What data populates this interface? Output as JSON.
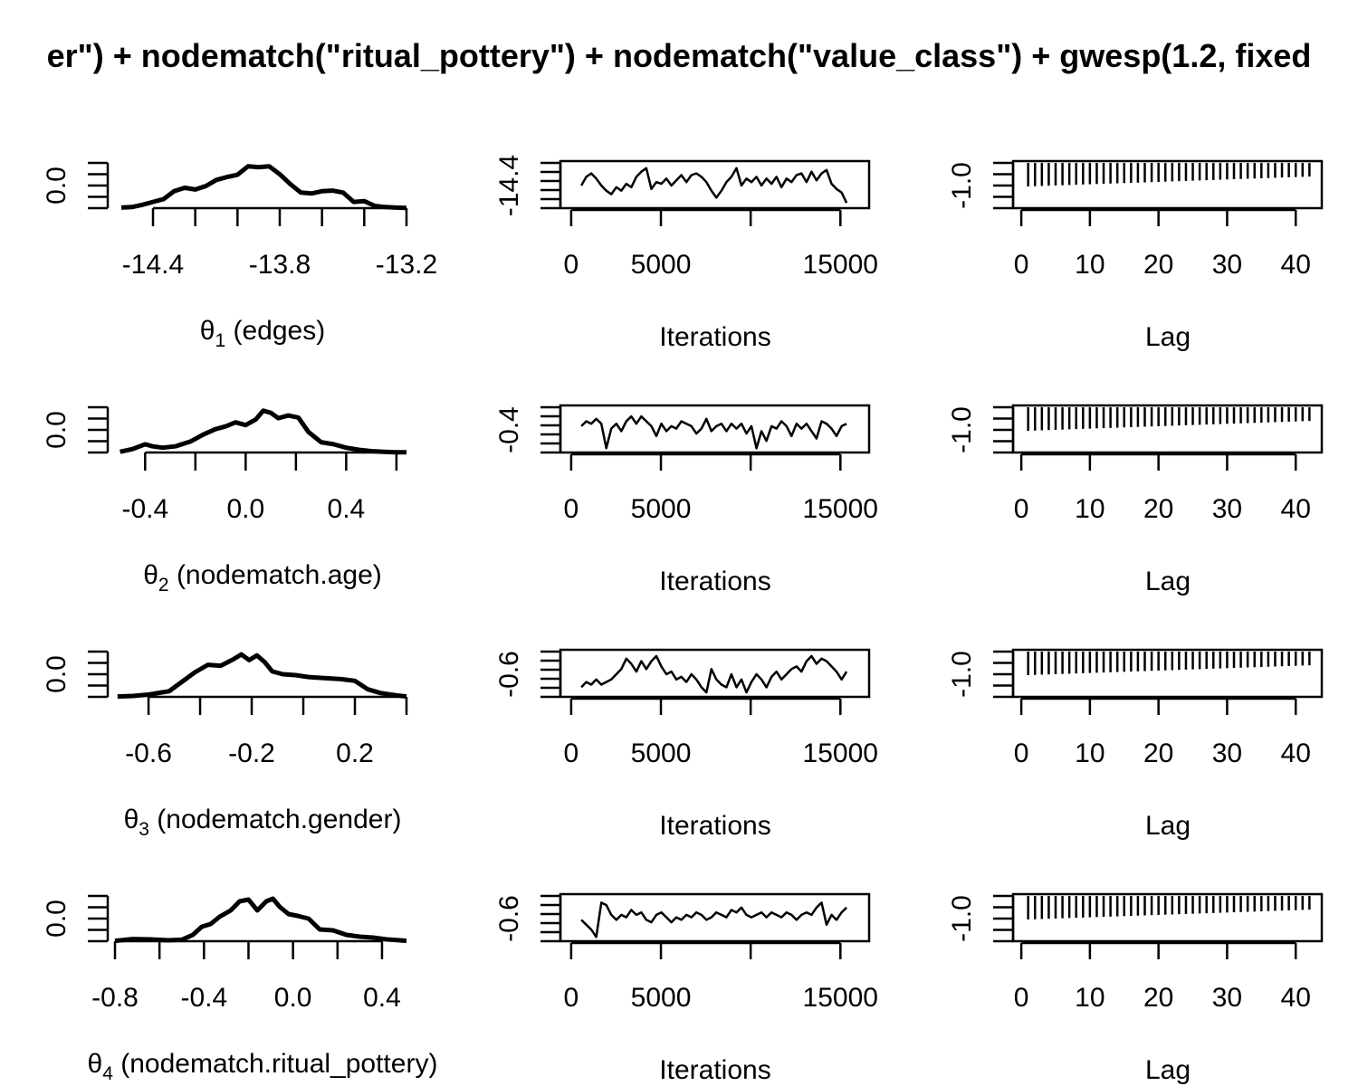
{
  "title": "er\") + nodematch(\"ritual_pottery\") + nodematch(\"value_class\") + gwesp(1.2, fixed",
  "colors": {
    "ink": "#000000",
    "background": "#ffffff"
  },
  "chart_data": [
    {
      "type": "line",
      "kind": "density",
      "parameter": {
        "symbol": "θ",
        "index": "1",
        "label": " (edges)"
      },
      "xticks": [
        "-14.4",
        "-13.8",
        "-13.2"
      ],
      "x_minor_ticks": [
        -14.4,
        -14.2,
        -14.0,
        -13.8,
        -13.6,
        -13.4,
        -13.2
      ],
      "xlim": [
        -14.58,
        -13.2
      ],
      "yticks": [
        "0.0"
      ],
      "ylim": [
        0,
        1.6
      ],
      "x": [
        -14.55,
        -14.5,
        -14.45,
        -14.4,
        -14.35,
        -14.3,
        -14.25,
        -14.2,
        -14.15,
        -14.1,
        -14.05,
        -14.0,
        -13.95,
        -13.9,
        -13.85,
        -13.8,
        -13.75,
        -13.7,
        -13.65,
        -13.6,
        -13.55,
        -13.5,
        -13.45,
        -13.4,
        -13.35,
        -13.3,
        -13.25,
        -13.2
      ],
      "y": [
        0.02,
        0.04,
        0.12,
        0.22,
        0.32,
        0.6,
        0.72,
        0.66,
        0.78,
        1.0,
        1.1,
        1.18,
        1.48,
        1.45,
        1.48,
        1.2,
        0.85,
        0.55,
        0.52,
        0.6,
        0.62,
        0.55,
        0.22,
        0.25,
        0.08,
        0.04,
        0.02,
        0.01
      ]
    },
    {
      "type": "line",
      "kind": "trace",
      "ylabel_tick": "-14.4",
      "xlabel": "Iterations",
      "xticks": [
        0,
        5000,
        15000
      ],
      "x_minor_ticks": [
        0,
        5000,
        10000,
        15000
      ],
      "xlim": [
        -600,
        16600
      ],
      "ylim": [
        -14.4,
        -13.2
      ],
      "x": [
        0,
        300,
        600,
        900,
        1200,
        1500,
        1800,
        2100,
        2400,
        2700,
        3000,
        3300,
        3600,
        3900,
        4200,
        4500,
        4800,
        5100,
        5400,
        5700,
        6000,
        6300,
        6600,
        6900,
        7200,
        7500,
        7800,
        8100,
        8400,
        8700,
        9000,
        9300,
        9600,
        9900,
        10200,
        10500,
        10800,
        11100,
        11400,
        11700,
        12000,
        12300,
        12600,
        12900,
        13200,
        13500,
        13800,
        14100,
        14400,
        14700,
        15000,
        15300,
        15600,
        15900
      ],
      "y": [
        -13.8,
        -13.55,
        -13.45,
        -13.6,
        -13.8,
        -13.95,
        -14.05,
        -13.85,
        -13.95,
        -13.75,
        -13.85,
        -13.55,
        -13.4,
        -13.3,
        -13.9,
        -13.7,
        -13.75,
        -13.6,
        -13.8,
        -13.65,
        -13.5,
        -13.7,
        -13.5,
        -13.45,
        -13.55,
        -13.7,
        -13.95,
        -14.15,
        -13.95,
        -13.7,
        -13.55,
        -13.3,
        -13.8,
        -13.6,
        -13.7,
        -13.55,
        -13.8,
        -13.6,
        -13.75,
        -13.55,
        -13.85,
        -13.6,
        -13.7,
        -13.5,
        -13.45,
        -13.7,
        -13.4,
        -13.65,
        -13.45,
        -13.35,
        -13.75,
        -13.9,
        -14.0,
        -14.3
      ]
    },
    {
      "type": "bar",
      "kind": "autocorrelation",
      "ylabel_tick": "-1.0",
      "xlabel": "Lag",
      "xticks": [
        0,
        10,
        20,
        30,
        40
      ],
      "xlim": [
        -1.2,
        43.8
      ],
      "ylim": [
        -1.0,
        1.0
      ],
      "lags": [
        1,
        2,
        3,
        4,
        5,
        6,
        7,
        8,
        9,
        10,
        11,
        12,
        13,
        14,
        15,
        16,
        17,
        18,
        19,
        20,
        21,
        22,
        23,
        24,
        25,
        26,
        27,
        28,
        29,
        30,
        31,
        32,
        33,
        34,
        35,
        36,
        37,
        38,
        39,
        40,
        41,
        42
      ],
      "values": [
        0.98,
        0.97,
        0.96,
        0.95,
        0.94,
        0.93,
        0.92,
        0.91,
        0.9,
        0.89,
        0.88,
        0.87,
        0.86,
        0.85,
        0.84,
        0.83,
        0.82,
        0.81,
        0.8,
        0.79,
        0.78,
        0.77,
        0.76,
        0.75,
        0.74,
        0.73,
        0.72,
        0.71,
        0.7,
        0.69,
        0.68,
        0.67,
        0.66,
        0.65,
        0.64,
        0.63,
        0.62,
        0.61,
        0.6,
        0.59,
        0.58,
        0.57
      ]
    },
    {
      "type": "line",
      "kind": "density",
      "parameter": {
        "symbol": "θ",
        "index": "2",
        "label": " (nodematch.age)"
      },
      "xticks": [
        "-0.4",
        "0.0",
        "0.4"
      ],
      "x_minor_ticks": [
        -0.4,
        -0.2,
        0.0,
        0.2,
        0.4,
        0.6
      ],
      "xlim": [
        -0.52,
        0.64
      ],
      "yticks": [
        "0.0"
      ],
      "ylim": [
        0,
        3.3
      ],
      "x": [
        -0.5,
        -0.45,
        -0.4,
        -0.37,
        -0.33,
        -0.28,
        -0.22,
        -0.17,
        -0.12,
        -0.08,
        -0.04,
        0.0,
        0.04,
        0.07,
        0.1,
        0.13,
        0.17,
        0.21,
        0.25,
        0.3,
        0.35,
        0.4,
        0.45,
        0.5,
        0.55,
        0.6,
        0.64
      ],
      "y": [
        0.05,
        0.25,
        0.6,
        0.45,
        0.35,
        0.45,
        0.8,
        1.3,
        1.7,
        1.9,
        2.2,
        2.0,
        2.4,
        3.05,
        2.9,
        2.5,
        2.7,
        2.55,
        1.5,
        0.75,
        0.6,
        0.35,
        0.2,
        0.1,
        0.05,
        0.02,
        0.01
      ]
    },
    {
      "type": "line",
      "kind": "trace",
      "ylabel_tick": "-0.4",
      "xlabel": "Iterations",
      "xticks": [
        0,
        5000,
        15000
      ],
      "x_minor_ticks": [
        0,
        5000,
        10000,
        15000
      ],
      "xlim": [
        -600,
        16600
      ],
      "ylim": [
        -0.4,
        0.45
      ],
      "x": [
        0,
        300,
        600,
        900,
        1200,
        1500,
        1800,
        2100,
        2400,
        2700,
        3000,
        3300,
        3600,
        3900,
        4200,
        4500,
        4800,
        5100,
        5400,
        5700,
        6000,
        6300,
        6600,
        6900,
        7200,
        7500,
        7800,
        8100,
        8400,
        8700,
        9000,
        9300,
        9600,
        9900,
        10200,
        10500,
        10800,
        11100,
        11400,
        11700,
        12000,
        12300,
        12600,
        12900,
        13200,
        13500,
        13800,
        14100,
        14400,
        14700,
        15000,
        15300,
        15600,
        15900
      ],
      "y": [
        0.1,
        0.2,
        0.15,
        0.25,
        0.15,
        -0.35,
        0.05,
        0.15,
        0.0,
        0.2,
        0.3,
        0.15,
        0.3,
        0.2,
        0.1,
        -0.1,
        0.15,
        0.0,
        0.1,
        0.05,
        0.2,
        0.15,
        0.1,
        -0.05,
        0.05,
        0.25,
        0.0,
        0.1,
        0.15,
        0.0,
        0.15,
        0.05,
        0.15,
        -0.05,
        0.1,
        -0.35,
        0.0,
        -0.2,
        0.1,
        0.05,
        0.2,
        0.1,
        -0.1,
        0.15,
        0.05,
        0.15,
        0.0,
        -0.15,
        0.2,
        0.15,
        0.05,
        -0.1,
        0.1,
        0.15
      ]
    },
    {
      "type": "bar",
      "kind": "autocorrelation",
      "ylabel_tick": "-1.0",
      "xlabel": "Lag",
      "xticks": [
        0,
        10,
        20,
        30,
        40
      ],
      "xlim": [
        -1.2,
        43.8
      ],
      "ylim": [
        -1.0,
        1.0
      ],
      "lags": [
        1,
        2,
        3,
        4,
        5,
        6,
        7,
        8,
        9,
        10,
        11,
        12,
        13,
        14,
        15,
        16,
        17,
        18,
        19,
        20,
        21,
        22,
        23,
        24,
        25,
        26,
        27,
        28,
        29,
        30,
        31,
        32,
        33,
        34,
        35,
        36,
        37,
        38,
        39,
        40,
        41,
        42
      ],
      "values": [
        0.98,
        0.97,
        0.96,
        0.95,
        0.94,
        0.93,
        0.92,
        0.91,
        0.9,
        0.89,
        0.88,
        0.87,
        0.86,
        0.85,
        0.84,
        0.83,
        0.82,
        0.81,
        0.8,
        0.79,
        0.78,
        0.77,
        0.76,
        0.75,
        0.74,
        0.73,
        0.72,
        0.71,
        0.7,
        0.69,
        0.68,
        0.67,
        0.66,
        0.65,
        0.64,
        0.63,
        0.62,
        0.61,
        0.6,
        0.59,
        0.58,
        0.57
      ]
    },
    {
      "type": "line",
      "kind": "density",
      "parameter": {
        "symbol": "θ",
        "index": "3",
        "label": " (nodematch.gender)"
      },
      "xticks": [
        "-0.6",
        "-0.2",
        "0.2"
      ],
      "x_minor_ticks": [
        -0.6,
        -0.4,
        -0.2,
        0.0,
        0.2,
        0.4
      ],
      "xlim": [
        -0.73,
        0.4
      ],
      "yticks": [
        "0.0"
      ],
      "ylim": [
        0,
        2.4
      ],
      "x": [
        -0.72,
        -0.66,
        -0.6,
        -0.52,
        -0.47,
        -0.42,
        -0.37,
        -0.32,
        -0.27,
        -0.24,
        -0.21,
        -0.18,
        -0.15,
        -0.12,
        -0.08,
        -0.03,
        0.02,
        0.08,
        0.14,
        0.2,
        0.25,
        0.3,
        0.36,
        0.4
      ],
      "y": [
        0.02,
        0.05,
        0.12,
        0.3,
        0.8,
        1.3,
        1.7,
        1.65,
        2.0,
        2.25,
        1.95,
        2.2,
        1.85,
        1.35,
        1.2,
        1.15,
        1.05,
        1.0,
        0.95,
        0.85,
        0.4,
        0.2,
        0.08,
        0.02
      ]
    },
    {
      "type": "line",
      "kind": "trace",
      "ylabel_tick": "-0.6",
      "xlabel": "Iterations",
      "xticks": [
        0,
        5000,
        15000
      ],
      "x_minor_ticks": [
        0,
        5000,
        10000,
        15000
      ],
      "xlim": [
        -600,
        16600
      ],
      "ylim": [
        -0.6,
        0.2
      ],
      "x": [
        0,
        300,
        600,
        900,
        1200,
        1500,
        1800,
        2100,
        2400,
        2700,
        3000,
        3300,
        3600,
        3900,
        4200,
        4500,
        4800,
        5100,
        5400,
        5700,
        6000,
        6300,
        6600,
        6900,
        7200,
        7500,
        7800,
        8100,
        8400,
        8700,
        9000,
        9300,
        9600,
        9900,
        10200,
        10500,
        10800,
        11100,
        11400,
        11700,
        12000,
        12300,
        12600,
        12900,
        13200,
        13500,
        13800,
        14100,
        14400,
        14700,
        15000,
        15300,
        15600,
        15900
      ],
      "y": [
        -0.45,
        -0.35,
        -0.4,
        -0.3,
        -0.4,
        -0.35,
        -0.3,
        -0.2,
        -0.1,
        0.1,
        0.0,
        -0.15,
        0.05,
        -0.1,
        0.05,
        0.15,
        -0.05,
        -0.2,
        -0.15,
        -0.3,
        -0.25,
        -0.35,
        -0.2,
        -0.3,
        -0.45,
        -0.55,
        -0.1,
        -0.3,
        -0.4,
        -0.45,
        -0.2,
        -0.45,
        -0.3,
        -0.55,
        -0.35,
        -0.2,
        -0.3,
        -0.45,
        -0.25,
        -0.15,
        -0.3,
        -0.2,
        -0.1,
        -0.05,
        -0.15,
        0.05,
        0.15,
        0.0,
        0.1,
        0.05,
        -0.05,
        -0.15,
        -0.3,
        -0.15
      ]
    },
    {
      "type": "bar",
      "kind": "autocorrelation",
      "ylabel_tick": "-1.0",
      "xlabel": "Lag",
      "xticks": [
        0,
        10,
        20,
        30,
        40
      ],
      "xlim": [
        -1.2,
        43.8
      ],
      "ylim": [
        -1.0,
        1.0
      ],
      "lags": [
        1,
        2,
        3,
        4,
        5,
        6,
        7,
        8,
        9,
        10,
        11,
        12,
        13,
        14,
        15,
        16,
        17,
        18,
        19,
        20,
        21,
        22,
        23,
        24,
        25,
        26,
        27,
        28,
        29,
        30,
        31,
        32,
        33,
        34,
        35,
        36,
        37,
        38,
        39,
        40,
        41,
        42
      ],
      "values": [
        0.98,
        0.97,
        0.96,
        0.95,
        0.94,
        0.93,
        0.92,
        0.91,
        0.9,
        0.89,
        0.88,
        0.87,
        0.86,
        0.85,
        0.84,
        0.83,
        0.82,
        0.81,
        0.8,
        0.79,
        0.78,
        0.77,
        0.76,
        0.75,
        0.74,
        0.73,
        0.72,
        0.71,
        0.7,
        0.69,
        0.68,
        0.67,
        0.66,
        0.65,
        0.64,
        0.63,
        0.62,
        0.61,
        0.6,
        0.59,
        0.58,
        0.57
      ]
    },
    {
      "type": "line",
      "kind": "density",
      "parameter": {
        "symbol": "θ",
        "index": "4",
        "label": " (nodematch.ritual_pottery)"
      },
      "xticks": [
        "-0.8",
        "-0.4",
        "0.0",
        "0.4"
      ],
      "x_minor_ticks": [
        -0.8,
        -0.6,
        -0.4,
        -0.2,
        0.0,
        0.2,
        0.4
      ],
      "xlim": [
        -0.8,
        0.51
      ],
      "yticks": [
        "0.0"
      ],
      "ylim": [
        0,
        2.5
      ],
      "x": [
        -0.8,
        -0.72,
        -0.64,
        -0.56,
        -0.5,
        -0.45,
        -0.41,
        -0.37,
        -0.33,
        -0.28,
        -0.24,
        -0.2,
        -0.16,
        -0.12,
        -0.09,
        -0.06,
        -0.02,
        0.02,
        0.07,
        0.12,
        0.18,
        0.24,
        0.3,
        0.36,
        0.42,
        0.48,
        0.51
      ],
      "y": [
        0.02,
        0.12,
        0.1,
        0.05,
        0.08,
        0.35,
        0.8,
        0.95,
        1.35,
        1.7,
        2.2,
        2.3,
        1.7,
        2.2,
        2.35,
        1.9,
        1.5,
        1.4,
        1.25,
        0.65,
        0.6,
        0.35,
        0.25,
        0.2,
        0.1,
        0.05,
        0.02
      ]
    },
    {
      "type": "line",
      "kind": "trace",
      "ylabel_tick": "-0.6",
      "xlabel": "Iterations",
      "xticks": [
        0,
        5000,
        15000
      ],
      "x_minor_ticks": [
        0,
        5000,
        10000,
        15000
      ],
      "xlim": [
        -600,
        16600
      ],
      "ylim": [
        -0.6,
        0.25
      ],
      "x": [
        0,
        300,
        600,
        900,
        1200,
        1500,
        1800,
        2100,
        2400,
        2700,
        3000,
        3300,
        3600,
        3900,
        4200,
        4500,
        4800,
        5100,
        5400,
        5700,
        6000,
        6300,
        6600,
        6900,
        7200,
        7500,
        7800,
        8100,
        8400,
        8700,
        9000,
        9300,
        9600,
        9900,
        10200,
        10500,
        10800,
        11100,
        11400,
        11700,
        12000,
        12300,
        12600,
        12900,
        13200,
        13500,
        13800,
        14100,
        14400,
        14700,
        15000,
        15300,
        15600,
        15900
      ],
      "y": [
        -0.2,
        -0.3,
        -0.4,
        -0.55,
        0.15,
        0.1,
        -0.1,
        -0.2,
        -0.1,
        -0.15,
        0.0,
        -0.1,
        -0.05,
        -0.2,
        -0.25,
        -0.1,
        -0.05,
        -0.15,
        -0.25,
        -0.15,
        -0.2,
        -0.1,
        -0.15,
        -0.05,
        -0.1,
        -0.2,
        -0.15,
        -0.05,
        -0.1,
        -0.15,
        0.0,
        -0.05,
        0.05,
        -0.1,
        -0.15,
        -0.1,
        -0.05,
        -0.15,
        -0.05,
        -0.1,
        -0.15,
        -0.05,
        -0.1,
        -0.2,
        -0.1,
        -0.05,
        -0.1,
        0.05,
        0.15,
        -0.3,
        -0.1,
        -0.2,
        -0.05,
        0.05
      ]
    },
    {
      "type": "bar",
      "kind": "autocorrelation",
      "ylabel_tick": "-1.0",
      "xlabel": "Lag",
      "xticks": [
        0,
        10,
        20,
        30,
        40
      ],
      "xlim": [
        -1.2,
        43.8
      ],
      "ylim": [
        -1.0,
        1.0
      ],
      "lags": [
        1,
        2,
        3,
        4,
        5,
        6,
        7,
        8,
        9,
        10,
        11,
        12,
        13,
        14,
        15,
        16,
        17,
        18,
        19,
        20,
        21,
        22,
        23,
        24,
        25,
        26,
        27,
        28,
        29,
        30,
        31,
        32,
        33,
        34,
        35,
        36,
        37,
        38,
        39,
        40,
        41,
        42
      ],
      "values": [
        0.98,
        0.97,
        0.96,
        0.95,
        0.94,
        0.93,
        0.92,
        0.91,
        0.9,
        0.89,
        0.88,
        0.87,
        0.86,
        0.85,
        0.84,
        0.83,
        0.82,
        0.81,
        0.8,
        0.79,
        0.78,
        0.77,
        0.76,
        0.75,
        0.74,
        0.73,
        0.72,
        0.71,
        0.7,
        0.69,
        0.68,
        0.67,
        0.66,
        0.65,
        0.64,
        0.63,
        0.62,
        0.61,
        0.6,
        0.59,
        0.58,
        0.57
      ]
    }
  ]
}
